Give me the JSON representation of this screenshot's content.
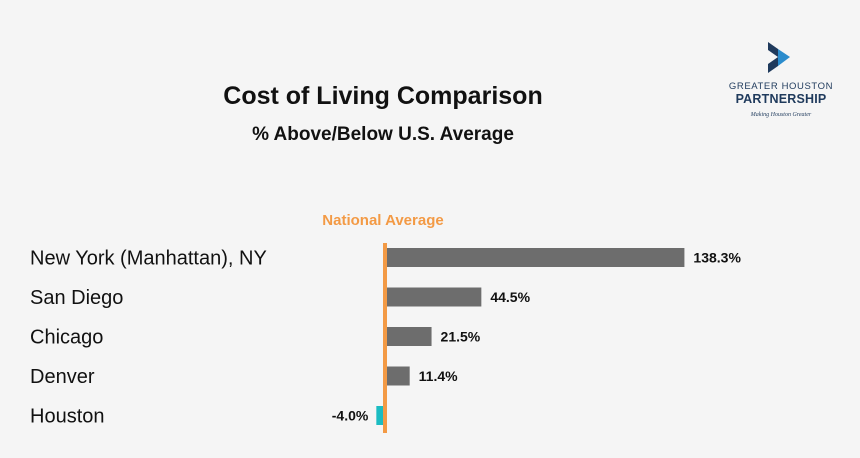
{
  "colors": {
    "positive_bar": "#6d6d6d",
    "negative_bar": "#1bbcc2",
    "reference_line": "#f39a45",
    "logo_navy": "#1f3a5c",
    "logo_blue": "#2b8ccd"
  },
  "logo": {
    "icon": "greater-houston-partnership-logo-icon",
    "line1": "GREATER HOUSTON",
    "line2": "PARTNERSHIP",
    "tagline": "Making Houston Greater"
  },
  "chart_data": {
    "type": "bar",
    "orientation": "horizontal",
    "title": "Cost of Living Comparison",
    "subtitle": "% Above/Below U.S. Average",
    "reference_line": {
      "label": "National Average",
      "value": 0
    },
    "categories": [
      "New York (Manhattan), NY",
      "San Diego",
      "Chicago",
      "Denver",
      "Houston"
    ],
    "values": [
      138.3,
      44.5,
      21.5,
      11.4,
      -4.0
    ],
    "value_labels": [
      "138.3%",
      "44.5%",
      "21.5%",
      "11.4%",
      "-4.0%"
    ],
    "xlim": [
      -25,
      280
    ],
    "grid": false,
    "legend": "none"
  }
}
